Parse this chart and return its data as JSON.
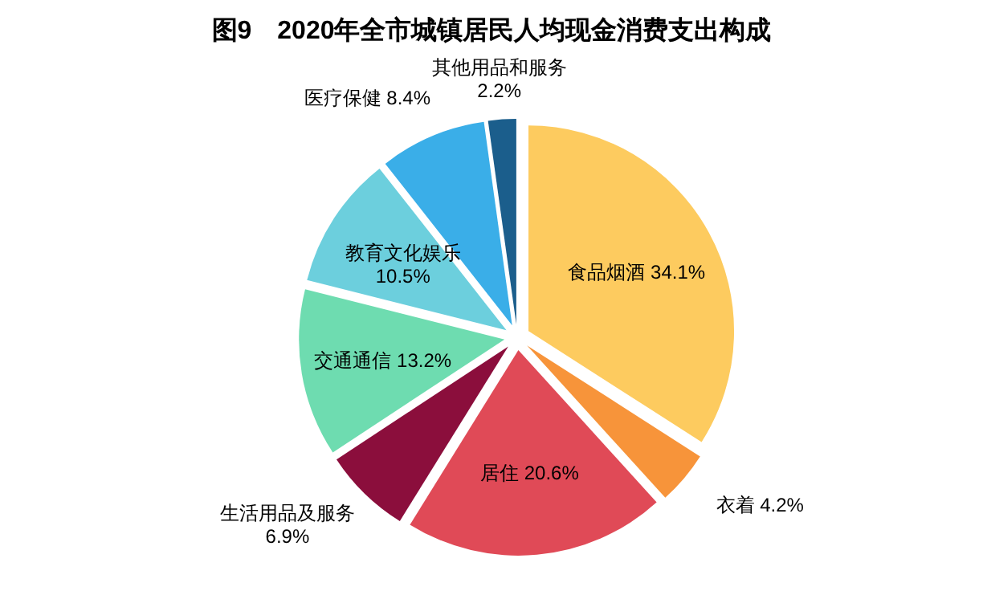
{
  "chart_data": {
    "type": "pie",
    "title": "图9　2020年全市城镇居民人均现金消费支出构成",
    "categories": [
      "食品烟酒",
      "衣着",
      "居住",
      "生活用品及服务",
      "交通通信",
      "教育文化娱乐",
      "医疗保健",
      "其他用品和服务"
    ],
    "values": [
      34.1,
      4.2,
      20.6,
      6.9,
      13.2,
      10.5,
      8.4,
      2.2
    ],
    "value_labels": [
      "34.1%",
      "4.2%",
      "20.6%",
      "6.9%",
      "13.2%",
      "10.5%",
      "8.4%",
      "2.2%"
    ],
    "colors": [
      "#fdcb5f",
      "#f7943a",
      "#e04a57",
      "#8b0e3c",
      "#6edcb0",
      "#6ccfdd",
      "#3aaee8",
      "#1b5e8c"
    ]
  }
}
